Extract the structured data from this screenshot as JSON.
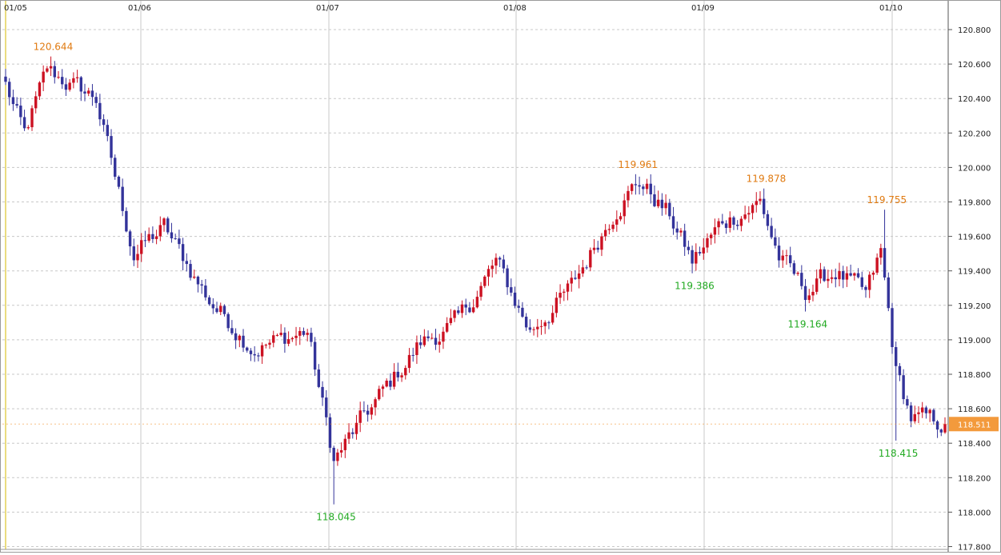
{
  "chart_data": {
    "type": "candlestick",
    "title": "",
    "xlabel": "",
    "ylabel": "",
    "ylim": [
      117.8,
      120.9
    ],
    "y_ticks": [
      "120.800",
      "120.600",
      "120.400",
      "120.200",
      "120.000",
      "119.800",
      "119.600",
      "119.400",
      "119.200",
      "119.000",
      "118.800",
      "118.600",
      "118.400",
      "118.200",
      "118.000",
      "117.800"
    ],
    "date_labels": [
      "01/05",
      "01/06",
      "01/07",
      "01/08",
      "01/09",
      "01/10"
    ],
    "grid": true,
    "current_price": 118.511,
    "annotations": [
      {
        "text": "120.644",
        "kind": "high"
      },
      {
        "text": "118.045",
        "kind": "low"
      },
      {
        "text": "119.961",
        "kind": "high"
      },
      {
        "text": "119.386",
        "kind": "low"
      },
      {
        "text": "119.878",
        "kind": "high"
      },
      {
        "text": "119.164",
        "kind": "low"
      },
      {
        "text": "119.755",
        "kind": "high"
      },
      {
        "text": "118.415",
        "kind": "low"
      }
    ],
    "anchors": [
      {
        "x": 0,
        "close": 120.48
      },
      {
        "x": 5,
        "close": 120.18
      },
      {
        "x": 11,
        "close": 120.56
      },
      {
        "x": 24,
        "close": 120.4
      },
      {
        "x": 30,
        "close": 119.85
      },
      {
        "x": 34,
        "close": 119.5
      },
      {
        "x": 42,
        "close": 119.65
      },
      {
        "x": 54,
        "close": 119.23
      },
      {
        "x": 66,
        "close": 118.95
      },
      {
        "x": 80,
        "close": 119.05
      },
      {
        "x": 87,
        "close": 118.3
      },
      {
        "x": 95,
        "close": 118.55
      },
      {
        "x": 110,
        "close": 118.98
      },
      {
        "x": 120,
        "close": 119.1
      },
      {
        "x": 130,
        "close": 119.45
      },
      {
        "x": 139,
        "close": 119.05
      },
      {
        "x": 150,
        "close": 119.3
      },
      {
        "x": 162,
        "close": 119.78
      },
      {
        "x": 168,
        "close": 119.92
      },
      {
        "x": 176,
        "close": 119.72
      },
      {
        "x": 182,
        "close": 119.45
      },
      {
        "x": 190,
        "close": 119.68
      },
      {
        "x": 200,
        "close": 119.8
      },
      {
        "x": 205,
        "close": 119.48
      },
      {
        "x": 212,
        "close": 119.28
      },
      {
        "x": 220,
        "close": 119.4
      },
      {
        "x": 228,
        "close": 119.25
      },
      {
        "x": 232,
        "close": 119.5
      },
      {
        "x": 236,
        "close": 118.82
      },
      {
        "x": 240,
        "close": 118.55
      },
      {
        "x": 249,
        "close": 118.51
      }
    ],
    "events": [
      {
        "x": 12,
        "high": 120.644
      },
      {
        "x": 87,
        "low": 118.045
      },
      {
        "x": 167,
        "high": 119.961
      },
      {
        "x": 182,
        "low": 119.386
      },
      {
        "x": 201,
        "high": 119.878
      },
      {
        "x": 212,
        "low": 119.164
      },
      {
        "x": 233,
        "high": 119.755
      },
      {
        "x": 236,
        "low": 118.415
      }
    ],
    "colors": {
      "up": "#cc1122",
      "down": "#33339a",
      "grid": "#c8c8c8",
      "high_label": "#e07a10",
      "low_label": "#22aa22",
      "price_tag": "#f39a3c"
    }
  }
}
